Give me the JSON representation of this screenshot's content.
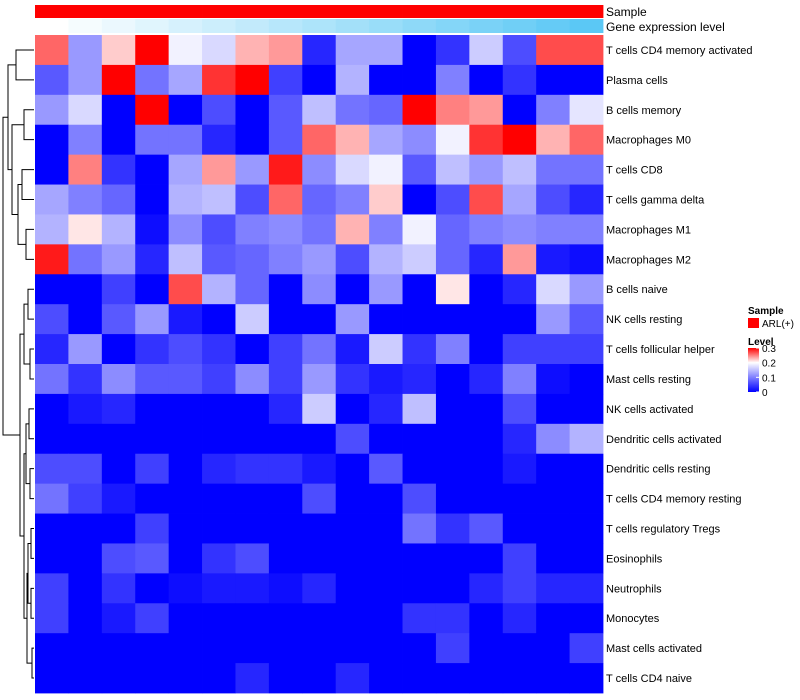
{
  "chart_data": {
    "type": "heatmap",
    "title": "",
    "annotations": [
      {
        "name": "Sample",
        "kind": "categorical",
        "color": "#ff0000",
        "levels": [
          "ARL(+)"
        ]
      },
      {
        "name": "Gene expression level",
        "kind": "gradient",
        "low_color": "#ffffff",
        "high_color": "#5bc8f5"
      }
    ],
    "rows": [
      "T cells CD4 memory activated",
      "Plasma cells",
      "B cells memory",
      "Macrophages M0",
      "T cells CD8",
      "T cells gamma delta",
      "Macrophages M1",
      "Macrophages M2",
      "B cells naive",
      "NK cells resting",
      "T cells follicular helper",
      "Mast cells resting",
      "NK cells activated",
      "Dendritic cells activated",
      "Dendritic cells resting",
      "T cells CD4 memory resting",
      "T cells regulatory  Tregs",
      "Eosinophils",
      "Neutrophils",
      "Monocytes",
      "Mast cells activated",
      "T cells CD4 naive"
    ],
    "n_columns": 17,
    "values": [
      [
        0.26,
        0.12,
        0.22,
        0.3,
        0.19,
        0.17,
        0.23,
        0.24,
        0.03,
        0.13,
        0.13,
        0.0,
        0.04,
        0.16,
        0.06,
        0.27,
        0.27
      ],
      [
        0.07,
        0.12,
        0.3,
        0.09,
        0.13,
        0.28,
        0.3,
        0.05,
        0.0,
        0.14,
        0.0,
        0.0,
        0.1,
        0.0,
        0.04,
        0.0,
        0.0
      ],
      [
        0.12,
        0.17,
        0.0,
        0.3,
        0.0,
        0.06,
        0.0,
        0.07,
        0.15,
        0.09,
        0.08,
        0.3,
        0.25,
        0.24,
        0.0,
        0.1,
        0.18
      ],
      [
        0.0,
        0.1,
        0.0,
        0.09,
        0.09,
        0.03,
        0.0,
        0.07,
        0.26,
        0.23,
        0.13,
        0.11,
        0.19,
        0.28,
        0.3,
        0.23,
        0.26
      ],
      [
        0.0,
        0.25,
        0.04,
        0.0,
        0.13,
        0.24,
        0.12,
        0.29,
        0.11,
        0.17,
        0.19,
        0.07,
        0.15,
        0.12,
        0.15,
        0.09,
        0.09
      ],
      [
        0.13,
        0.1,
        0.08,
        0.0,
        0.14,
        0.15,
        0.06,
        0.26,
        0.08,
        0.1,
        0.22,
        0.0,
        0.06,
        0.27,
        0.13,
        0.06,
        0.03
      ],
      [
        0.14,
        0.21,
        0.14,
        0.01,
        0.11,
        0.06,
        0.1,
        0.11,
        0.09,
        0.23,
        0.1,
        0.19,
        0.08,
        0.1,
        0.11,
        0.1,
        0.1
      ],
      [
        0.29,
        0.09,
        0.12,
        0.03,
        0.15,
        0.07,
        0.08,
        0.1,
        0.12,
        0.06,
        0.14,
        0.16,
        0.08,
        0.03,
        0.24,
        0.02,
        0.01
      ],
      [
        0.0,
        0.0,
        0.05,
        0.0,
        0.27,
        0.14,
        0.08,
        0.0,
        0.11,
        0.0,
        0.12,
        0.0,
        0.21,
        0.0,
        0.03,
        0.17,
        0.12
      ],
      [
        0.06,
        0.0,
        0.07,
        0.12,
        0.02,
        0.0,
        0.16,
        0.0,
        0.0,
        0.12,
        0.0,
        0.0,
        0.0,
        0.0,
        0.0,
        0.12,
        0.07
      ],
      [
        0.03,
        0.12,
        0.0,
        0.04,
        0.06,
        0.04,
        0.0,
        0.05,
        0.09,
        0.02,
        0.16,
        0.04,
        0.1,
        0.0,
        0.05,
        0.05,
        0.05
      ],
      [
        0.09,
        0.04,
        0.11,
        0.07,
        0.07,
        0.05,
        0.11,
        0.05,
        0.12,
        0.04,
        0.02,
        0.03,
        0.0,
        0.03,
        0.1,
        0.01,
        0.0
      ],
      [
        0.0,
        0.02,
        0.03,
        0.0,
        0.0,
        0.0,
        0.0,
        0.03,
        0.16,
        0.0,
        0.03,
        0.15,
        0.0,
        0.0,
        0.06,
        0.0,
        0.0
      ],
      [
        0.0,
        0.0,
        0.0,
        0.0,
        0.0,
        0.0,
        0.0,
        0.0,
        0.0,
        0.06,
        0.0,
        0.0,
        0.0,
        0.0,
        0.03,
        0.11,
        0.14
      ],
      [
        0.06,
        0.06,
        0.0,
        0.05,
        0.0,
        0.03,
        0.04,
        0.04,
        0.02,
        0.0,
        0.07,
        0.0,
        0.0,
        0.0,
        0.02,
        0.0,
        0.0
      ],
      [
        0.09,
        0.05,
        0.02,
        0.0,
        0.0,
        0.0,
        0.0,
        0.0,
        0.06,
        0.0,
        0.0,
        0.06,
        0.0,
        0.0,
        0.0,
        0.0,
        0.0
      ],
      [
        0.0,
        0.0,
        0.0,
        0.05,
        0.0,
        0.0,
        0.0,
        0.0,
        0.0,
        0.0,
        0.0,
        0.09,
        0.04,
        0.07,
        0.0,
        0.0,
        0.0
      ],
      [
        0.0,
        0.0,
        0.06,
        0.07,
        0.0,
        0.04,
        0.06,
        0.0,
        0.0,
        0.0,
        0.0,
        0.0,
        0.0,
        0.0,
        0.05,
        0.0,
        0.0
      ],
      [
        0.05,
        0.0,
        0.04,
        0.0,
        0.01,
        0.02,
        0.02,
        0.01,
        0.03,
        0.0,
        0.0,
        0.0,
        0.0,
        0.03,
        0.05,
        0.03,
        0.03
      ],
      [
        0.05,
        0.0,
        0.02,
        0.05,
        0.0,
        0.0,
        0.0,
        0.0,
        0.0,
        0.0,
        0.0,
        0.04,
        0.04,
        0.0,
        0.03,
        0.0,
        0.0
      ],
      [
        0.0,
        0.0,
        0.0,
        0.0,
        0.0,
        0.0,
        0.0,
        0.0,
        0.0,
        0.0,
        0.0,
        0.0,
        0.05,
        0.0,
        0.0,
        0.0,
        0.05
      ],
      [
        0.0,
        0.0,
        0.0,
        0.0,
        0.0,
        0.0,
        0.03,
        0.0,
        0.0,
        0.03,
        0.0,
        0.0,
        0.0,
        0.0,
        0.0,
        0.0,
        0.0
      ]
    ],
    "color_scale": {
      "low": "#0000ff",
      "mid": "#ffffff",
      "high": "#ff0000",
      "min": 0,
      "mid_value": 0.2,
      "max": 0.3
    },
    "legend": {
      "sample_title": "Sample",
      "sample_item": "ARL(+)",
      "level_title": "Level",
      "level_ticks": [
        "0.3",
        "0.2",
        "0.1",
        "0"
      ],
      "position": "right"
    },
    "row_dendrogram": true
  }
}
